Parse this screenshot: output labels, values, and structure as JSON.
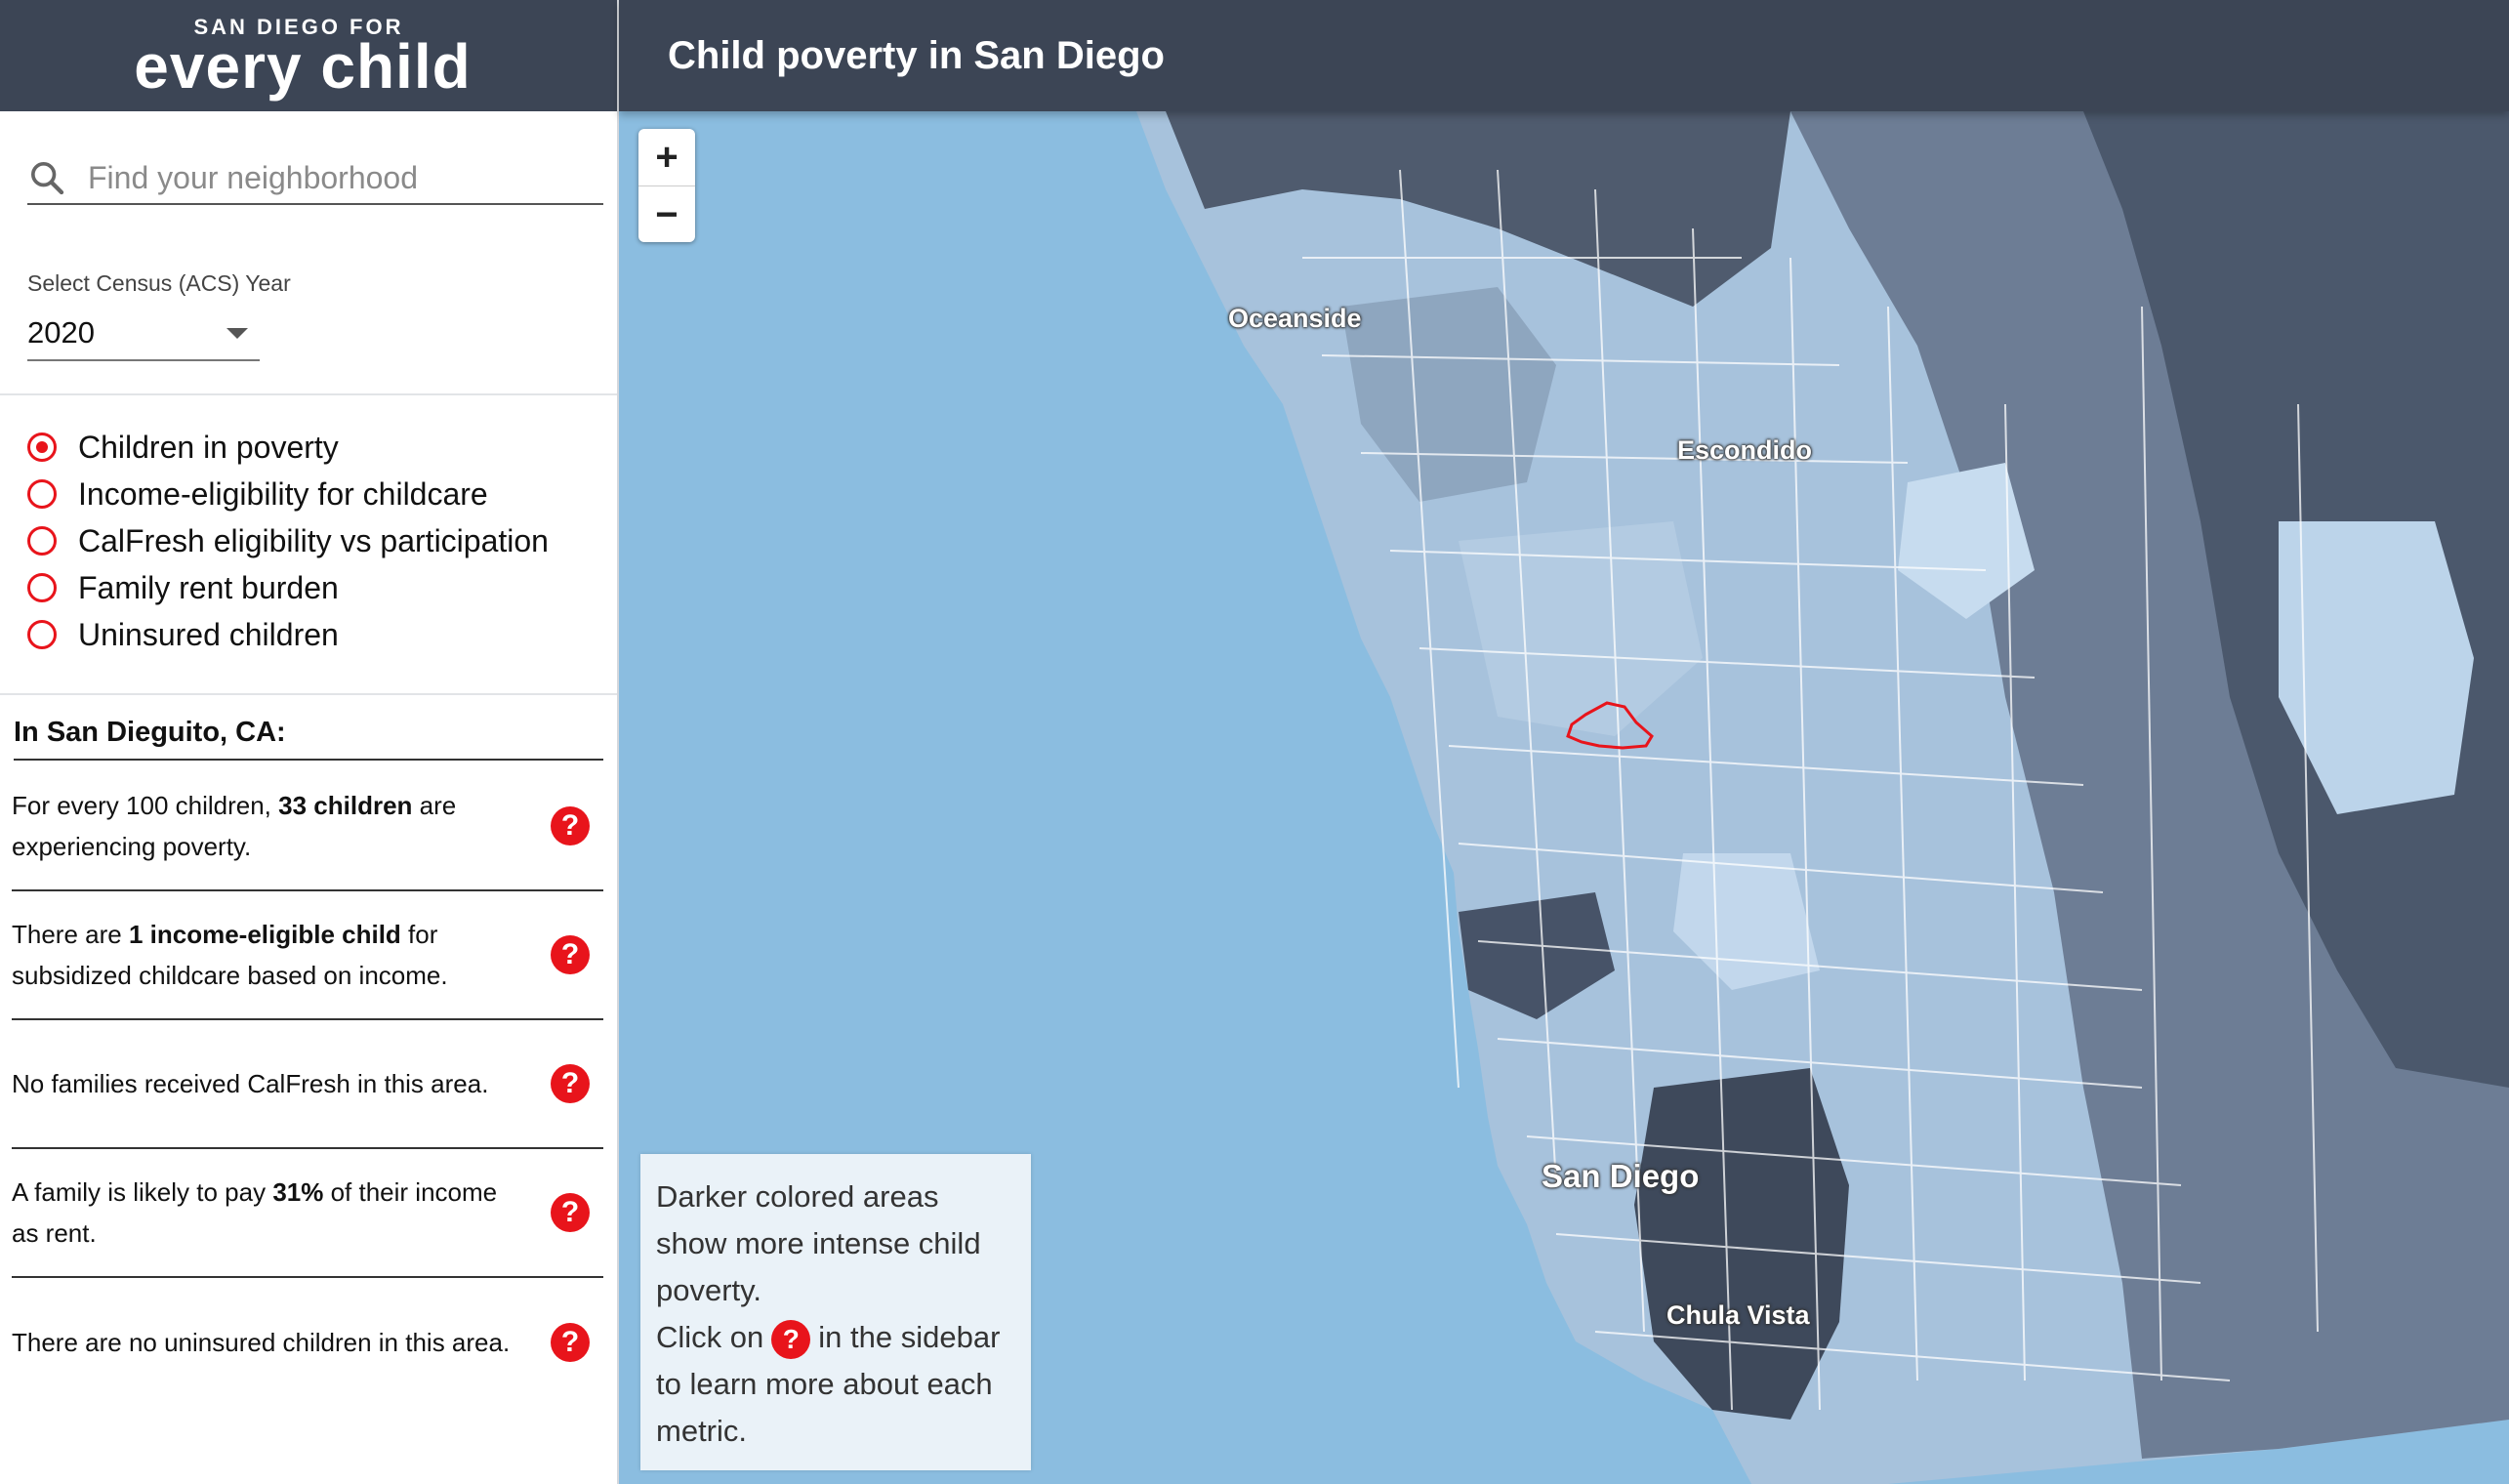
{
  "logo": {
    "top": "SAN DIEGO FOR",
    "main": "every child"
  },
  "header": {
    "title": "Child poverty in San Diego"
  },
  "search": {
    "placeholder": "Find your neighborhood",
    "icon": "search-icon"
  },
  "year": {
    "label": "Select Census (ACS) Year",
    "selected": "2020"
  },
  "metrics": [
    {
      "label": "Children in poverty",
      "selected": true
    },
    {
      "label": "Income-eligibility for childcare",
      "selected": false
    },
    {
      "label": "CalFresh eligibility vs participation",
      "selected": false
    },
    {
      "label": "Family rent burden",
      "selected": false
    },
    {
      "label": "Uninsured children",
      "selected": false
    }
  ],
  "place": {
    "title": "In San Dieguito, CA:"
  },
  "stats": [
    {
      "pre": "For every 100 children, ",
      "bold": "33 children",
      "post": " are experiencing poverty."
    },
    {
      "pre": "There are ",
      "bold": "1 income-eligible child",
      "post": " for subsidized childcare based on income."
    },
    {
      "pre": "No families received CalFresh in this area.",
      "bold": "",
      "post": ""
    },
    {
      "pre": "A family is likely to pay ",
      "bold": "31%",
      "post": " of their income as rent."
    },
    {
      "pre": "There are no uninsured children in this area.",
      "bold": "",
      "post": ""
    }
  ],
  "help_symbol": "?",
  "map": {
    "zoom_in": "+",
    "zoom_out": "−",
    "cities": {
      "oceanside": "Oceanside",
      "escondido": "Escondido",
      "san_diego": "San Diego",
      "chula_vista": "Chula Vista"
    },
    "legend": {
      "line1": "Darker colored areas show more intense child poverty.",
      "line2_pre": "Click on",
      "line2_post": "in the sidebar to learn more about each metric."
    },
    "colors": {
      "ocean": "#8bbde0",
      "land_dark": "#3f4a5c",
      "land_light": "#c8dcf0",
      "selected_outline": "#e8141b"
    }
  },
  "colors": {
    "header_bg": "#3c4555",
    "accent": "#e8141b"
  }
}
